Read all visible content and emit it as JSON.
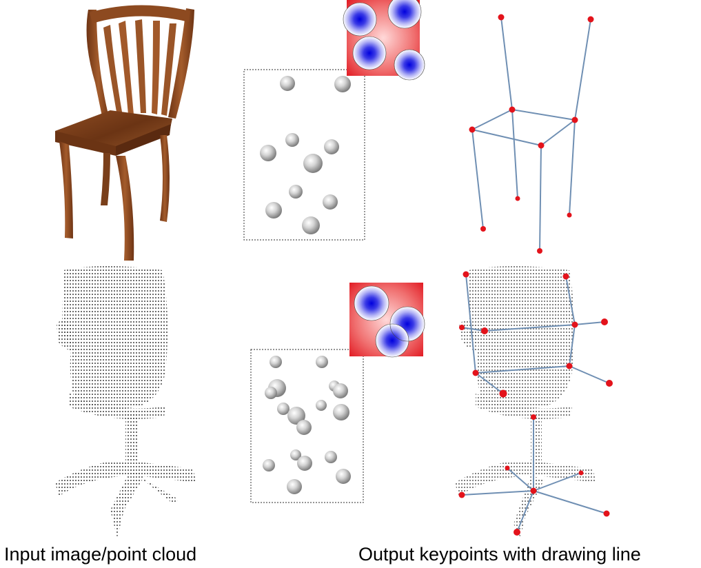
{
  "captions": {
    "left": "Input image/point cloud",
    "right": "Output keypoints with drawing line"
  },
  "colors": {
    "chair_wood": "#8b4a22",
    "chair_wood_light": "#a65d2e",
    "chair_seat": "#7a3f1a",
    "keypoint": "#e3131b",
    "skeleton_line": "#6f8fb3",
    "heatmap_red": "#e8242a",
    "heatmap_blue": "#1a1ad9",
    "sphere": "#c8c8c8",
    "points": "#4a4a4a",
    "dotted_frame": "#555555"
  },
  "icons": {
    "chair_render": "wooden-chair-image",
    "point_cloud": "office-chair-point-cloud",
    "heatmap": "gaussian-heatmap",
    "spheres": "gray-spheres"
  }
}
